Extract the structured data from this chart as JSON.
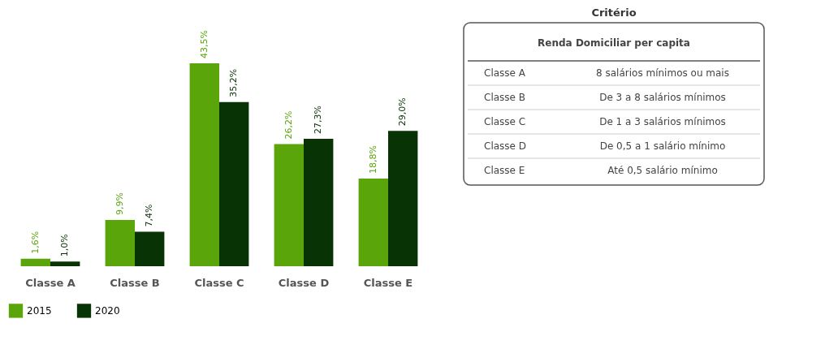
{
  "chart_data": [
    {
      "type": "bar",
      "categories": [
        "Classe A",
        "Classe B",
        "Classe C",
        "Classe D",
        "Classe E"
      ],
      "legend": "bottom",
      "series": [
        {
          "name": "2015",
          "color": "#5aa50a",
          "values": [
            1.6,
            9.9,
            43.5,
            26.2,
            18.8
          ],
          "value_labels": [
            "1,6%",
            "9,9%",
            "43,5%",
            "26,2%",
            "18,8%"
          ]
        },
        {
          "name": "2020",
          "color": "#083305",
          "values": [
            1.0,
            7.4,
            35.2,
            27.3,
            29.0
          ],
          "value_labels": [
            "1,0%",
            "7,4%",
            "35,2%",
            "27,3%",
            "29,0%"
          ]
        }
      ]
    },
    {
      "type": "other",
      "title": "Critério",
      "subtitle": "Renda Domiciliar per capita",
      "categories": [
        "Classe A",
        "Classe B",
        "Classe C",
        "Classe D",
        "Classe E"
      ],
      "annotations": [
        "8 salários mínimos ou mais",
        "De 3 a 8 salários mínimos",
        "De 1 a 3 salários mínimos",
        "De 0,5 a 1 salário mínimo",
        "Até 0,5 salário mínimo"
      ]
    }
  ]
}
